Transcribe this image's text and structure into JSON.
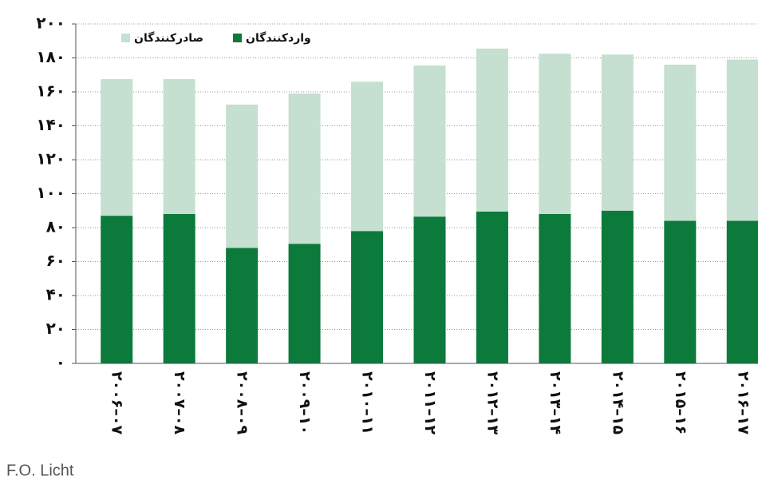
{
  "chart_data": {
    "type": "bar",
    "stacked": true,
    "source": "F.O. Licht",
    "categories": [
      "۲۰۰۶–۰۷",
      "۲۰۰۷–۰۸",
      "۲۰۰۸–۰۹",
      "۲۰۰۹–۱۰",
      "۲۰۱۰–۱۱",
      "۲۰۱۱–۱۲",
      "۲۰۱۲–۱۳",
      "۲۰۱۳–۱۴",
      "۲۰۱۴–۱۵",
      "۲۰۱۵–۱۶",
      "۲۰۱۶–۱۷"
    ],
    "series": [
      {
        "name": "واردکنندگان",
        "color": "#0b7a3b",
        "values": [
          87,
          88,
          68,
          70.5,
          78,
          86.5,
          89.5,
          88,
          90,
          84,
          84
        ]
      },
      {
        "name": "صادرکنندگان",
        "color": "#c5e0d0",
        "values": [
          80.5,
          79.5,
          84.5,
          88.5,
          88,
          89,
          96,
          94.5,
          92,
          92,
          95
        ]
      }
    ],
    "ylim": [
      0,
      200
    ],
    "yticks": [
      {
        "value": 0,
        "label": "۰"
      },
      {
        "value": 20,
        "label": "۲۰"
      },
      {
        "value": 40,
        "label": "۴۰"
      },
      {
        "value": 60,
        "label": "۶۰"
      },
      {
        "value": 80,
        "label": "۸۰"
      },
      {
        "value": 100,
        "label": "۱۰۰"
      },
      {
        "value": 120,
        "label": "۱۲۰"
      },
      {
        "value": 140,
        "label": "۱۴۰"
      },
      {
        "value": 160,
        "label": "۱۶۰"
      },
      {
        "value": 180,
        "label": "۱۸۰"
      },
      {
        "value": 200,
        "label": "۲۰۰"
      }
    ],
    "grid": true
  }
}
